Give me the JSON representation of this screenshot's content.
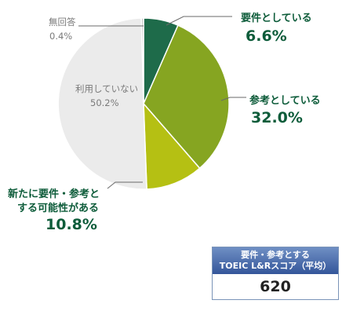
{
  "chart_data": {
    "type": "pie",
    "slices": [
      {
        "label": "要件としている",
        "value": 6.6,
        "display": "6.6%",
        "color": "#1e6b4a"
      },
      {
        "label": "参考としている",
        "value": 32.0,
        "display": "32.0%",
        "color": "#86a521"
      },
      {
        "label": "新たに要件・参考とする可能性がある",
        "line1": "新たに要件・参考と",
        "line2": "する可能性がある",
        "value": 10.8,
        "display": "10.8%",
        "color": "#b5c013"
      },
      {
        "label": "利用していない",
        "value": 50.2,
        "display": "50.2%",
        "color": "#ebebeb"
      },
      {
        "label": "無回答",
        "value": 0.4,
        "display": "0.4%",
        "color": "#c9c9c9"
      }
    ]
  },
  "score_box": {
    "header_line1": "要件・参考とする",
    "header_line2": "TOEIC L&Rスコア（平均）",
    "value": "620"
  }
}
